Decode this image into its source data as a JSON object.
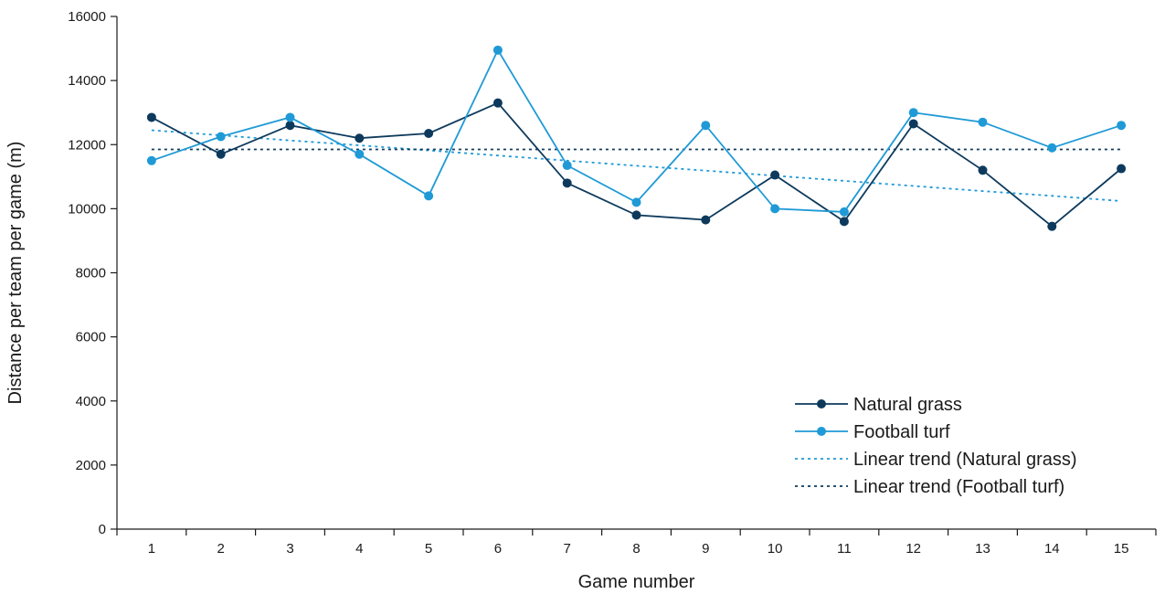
{
  "chart_data": {
    "type": "line",
    "title": "",
    "xlabel": "Game number",
    "ylabel": "Distance per team per game (m)",
    "categories": [
      "1",
      "2",
      "3",
      "4",
      "5",
      "6",
      "7",
      "8",
      "9",
      "10",
      "11",
      "12",
      "13",
      "14",
      "15"
    ],
    "ylim": [
      0,
      16000
    ],
    "yticks": [
      0,
      2000,
      4000,
      6000,
      8000,
      10000,
      12000,
      14000,
      16000
    ],
    "grid": false,
    "legend_position": "bottom-right",
    "series": [
      {
        "name": "Natural grass",
        "style": "line-marker",
        "color": "#0d3a5c",
        "values": [
          12850,
          11700,
          12600,
          12200,
          12350,
          13300,
          10800,
          9800,
          9650,
          11050,
          9600,
          12650,
          11200,
          9450,
          11250
        ]
      },
      {
        "name": "Football turf",
        "style": "line-marker",
        "color": "#1f9ad6",
        "values": [
          11500,
          12250,
          12850,
          11700,
          10400,
          14950,
          11350,
          10200,
          12600,
          10000,
          9900,
          13000,
          12700,
          11900,
          12600
        ]
      },
      {
        "name": "Linear trend (Natural grass)",
        "style": "dotted",
        "color": "#1f9ad6",
        "values": [
          12450,
          12290,
          12130,
          11980,
          11820,
          11660,
          11500,
          11340,
          11190,
          11030,
          10870,
          10710,
          10550,
          10400,
          10240
        ]
      },
      {
        "name": "Linear trend (Football turf)",
        "style": "dotted",
        "color": "#0d3a5c",
        "values": [
          11850,
          11850,
          11850,
          11850,
          11850,
          11850,
          11850,
          11850,
          11850,
          11850,
          11850,
          11850,
          11850,
          11850,
          11850
        ]
      }
    ]
  }
}
